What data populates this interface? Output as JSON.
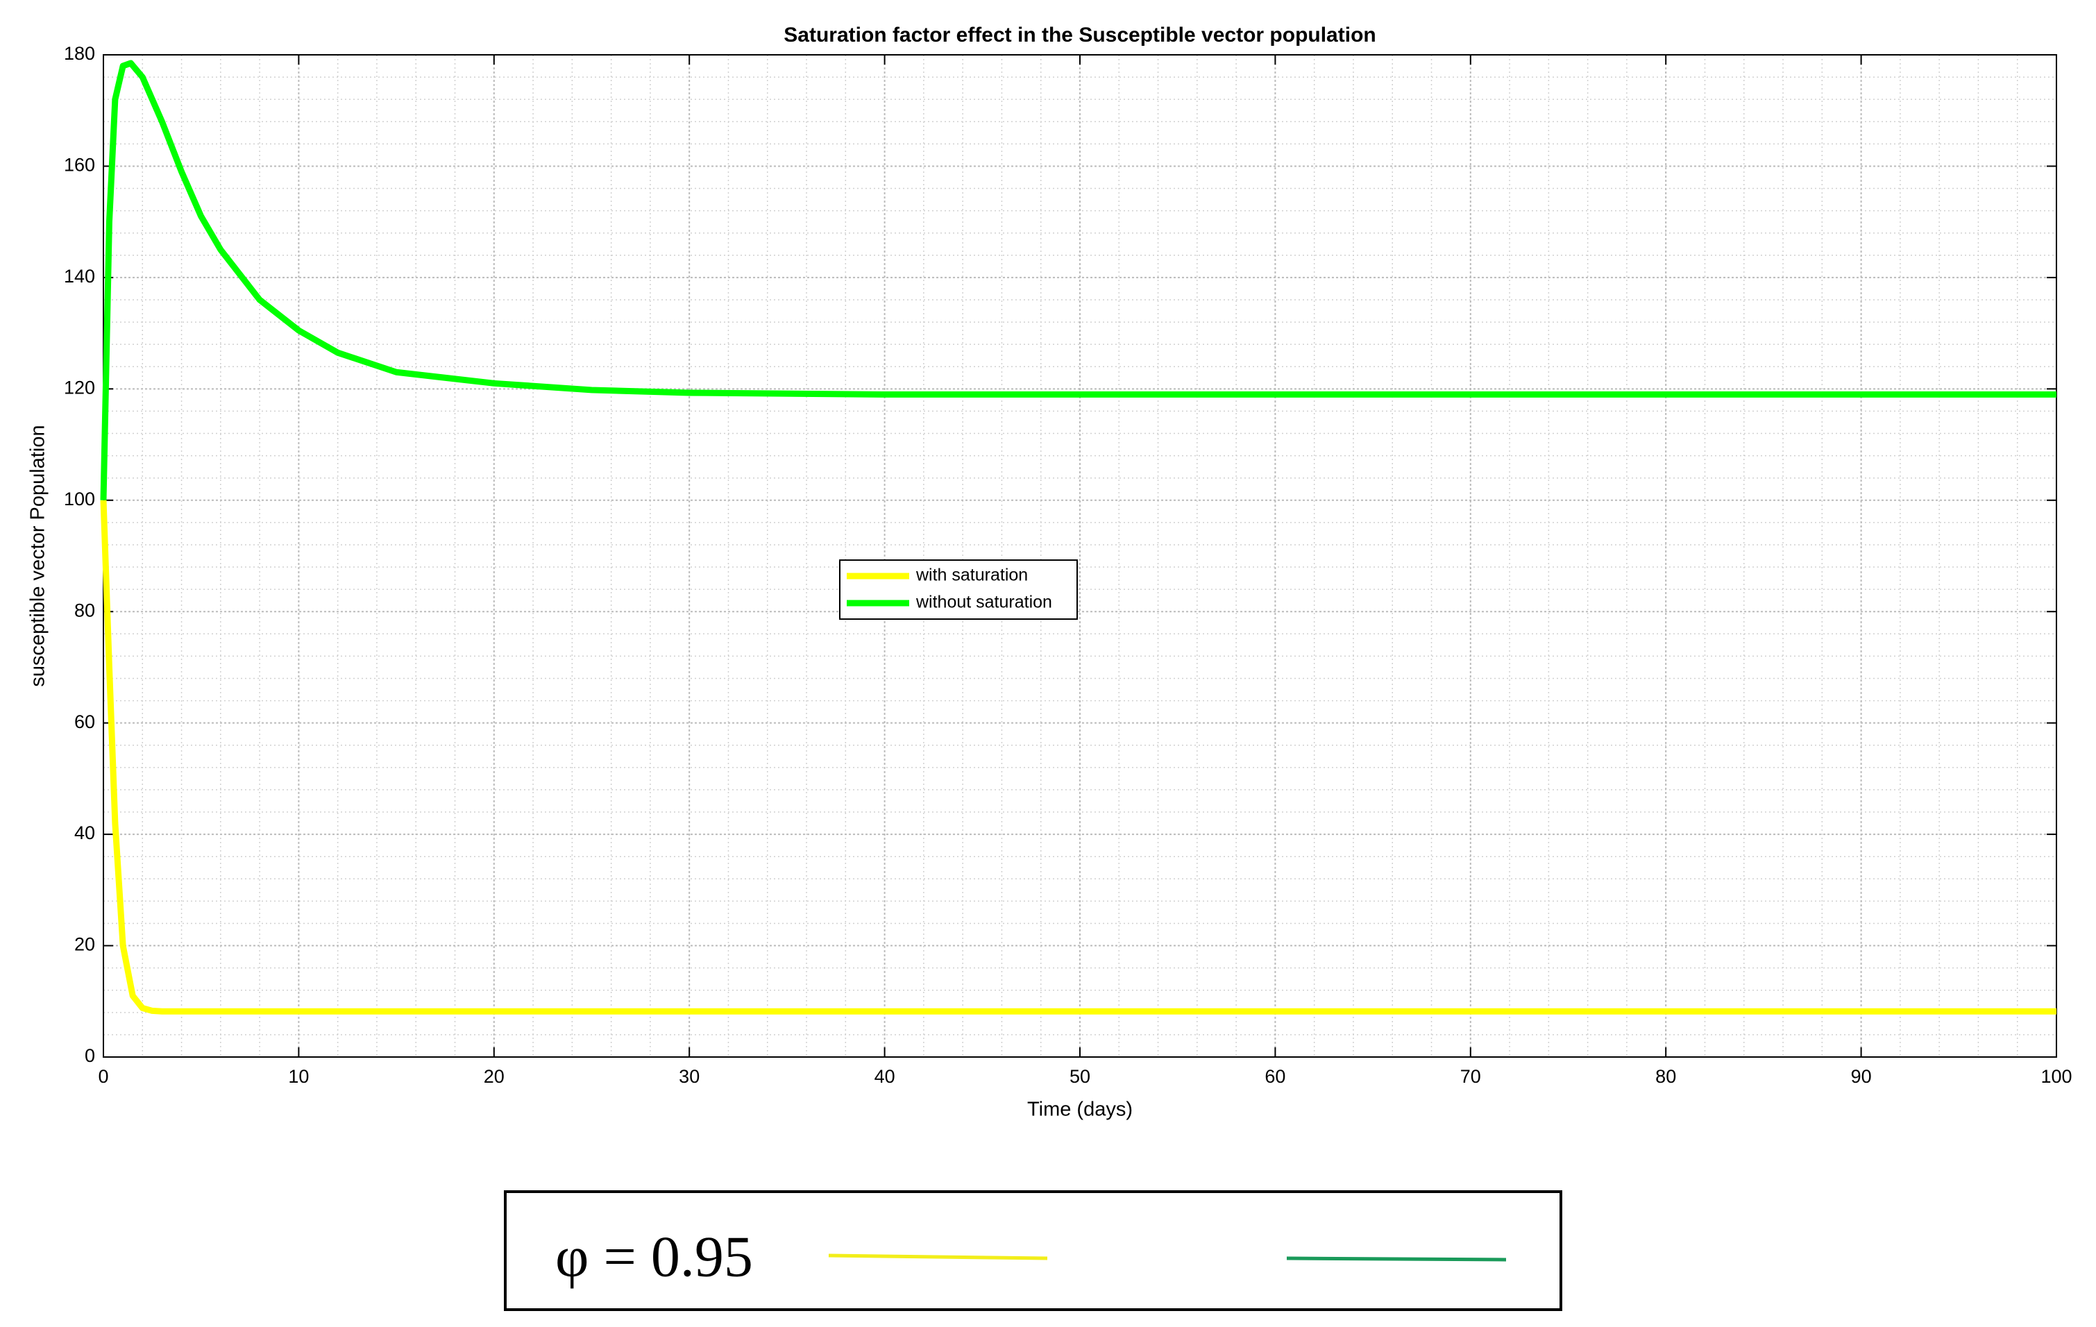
{
  "chart_data": {
    "type": "line",
    "title": "Saturation factor effect in the Susceptible vector population",
    "x_label": "Time (days)",
    "y_label": "susceptible vector Population",
    "xlim": [
      0,
      100
    ],
    "xticks": [
      0,
      10,
      20,
      30,
      40,
      50,
      60,
      70,
      80,
      90,
      100
    ],
    "ylim": [
      0,
      180
    ],
    "yticks": [
      0,
      20,
      40,
      60,
      80,
      100,
      120,
      140,
      160,
      180
    ],
    "grid": true,
    "minor_grid": true,
    "legend": "center",
    "series": [
      {
        "name": "with saturation",
        "color": "#ffff00",
        "x": [
          0,
          0.3,
          0.6,
          1,
          1.5,
          2,
          2.5,
          3,
          5,
          100
        ],
        "values": [
          100,
          70,
          42,
          20,
          11,
          8.8,
          8.3,
          8.2,
          8.2,
          8.2
        ]
      },
      {
        "name": "without saturation",
        "color": "#00ff00",
        "x": [
          0,
          0.3,
          0.6,
          1,
          1.4,
          2,
          3,
          4,
          5,
          6,
          8,
          10,
          12,
          15,
          20,
          25,
          30,
          40,
          50,
          100
        ],
        "values": [
          100,
          150,
          172,
          178,
          178.5,
          176,
          168,
          159,
          151,
          145,
          136,
          130.5,
          126.5,
          123,
          121,
          119.8,
          119.3,
          119,
          119,
          119
        ]
      }
    ],
    "annotation": "φ = 0.95",
    "annotation_keys": [
      {
        "color": "#f2ee1a"
      },
      {
        "color": "#1a9a5a"
      }
    ]
  }
}
